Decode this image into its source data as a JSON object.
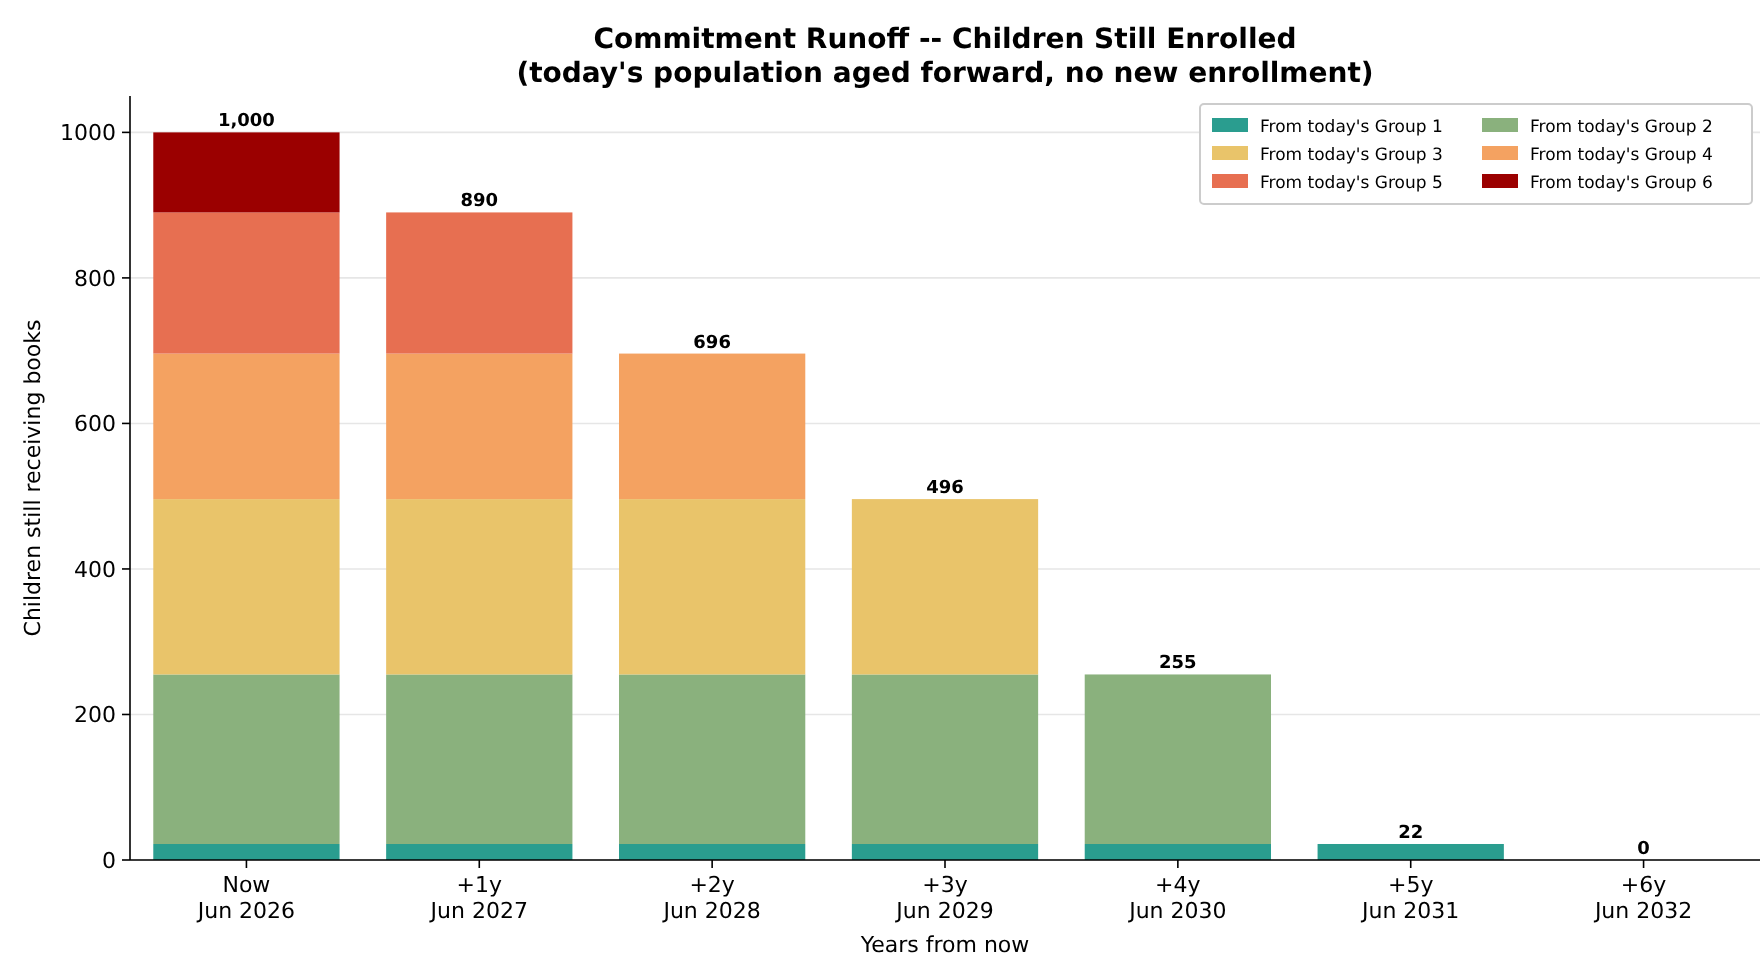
{
  "chart_data": {
    "type": "bar",
    "title": "Commitment Runoff -- Children Still Enrolled\n(today's population aged forward, no new enrollment)",
    "xlabel": "Years from now",
    "ylabel": "Children still receiving books",
    "categories": [
      "Now\nJun 2026",
      "+1y\nJun 2027",
      "+2y\nJun 2028",
      "+3y\nJun 2029",
      "+4y\nJun 2030",
      "+5y\nJun 2031",
      "+6y\nJun 2032"
    ],
    "stacked": true,
    "series": [
      {
        "name": "From today's Group 1",
        "color": "#2a9d8f",
        "values": [
          22,
          22,
          22,
          22,
          22,
          22,
          0
        ]
      },
      {
        "name": "From today's Group 2",
        "color": "#8ab17d",
        "values": [
          233,
          233,
          233,
          233,
          233,
          null,
          null
        ]
      },
      {
        "name": "From today's Group 3",
        "color": "#e9c46a",
        "values": [
          241,
          241,
          241,
          241,
          null,
          null,
          null
        ]
      },
      {
        "name": "From today's Group 4",
        "color": "#f4a261",
        "values": [
          200,
          200,
          200,
          null,
          null,
          null,
          null
        ]
      },
      {
        "name": "From today's Group 5",
        "color": "#e76f51",
        "values": [
          194,
          194,
          null,
          null,
          null,
          null,
          null
        ]
      },
      {
        "name": "From today's Group 6",
        "color": "#9b0000",
        "values": [
          110,
          null,
          null,
          null,
          null,
          null,
          null
        ]
      }
    ],
    "totals": [
      "1,000",
      "890",
      "696",
      "496",
      "255",
      "22",
      "0"
    ],
    "ylim": [
      0,
      1050
    ],
    "yticks": [
      0,
      200,
      400,
      600,
      800,
      1000
    ],
    "grid": "y",
    "legend": "top right"
  }
}
